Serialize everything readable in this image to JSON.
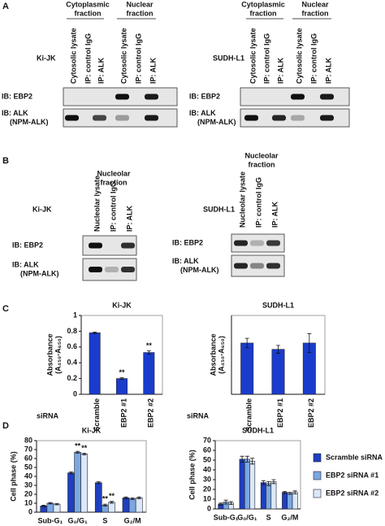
{
  "panels": [
    {
      "label": "A",
      "blocks": [
        {
          "cell_line": "Ki-JK",
          "groups": [
            [
              "Cytoplasmic",
              "fraction"
            ],
            [
              "Nuclear",
              "fraction"
            ]
          ],
          "lanes": [
            "Cytosolic lysate",
            "IP: control IgG",
            "IP: ALK",
            "Cytosolic lysate",
            "IP: control IgG",
            "IP: ALK"
          ],
          "blots": [
            [
              "IB: EBP2"
            ],
            [
              "IB: ALK",
              "(NPM-ALK)"
            ]
          ]
        },
        {
          "cell_line": "SUDH-L1",
          "groups": [
            [
              "Cytoplasmic",
              "fraction"
            ],
            [
              "Nuclear",
              "fraction"
            ]
          ],
          "lanes": [
            "Cytosolic lysate",
            "IP: control IgG",
            "IP: ALK",
            "Cytosolic lysate",
            "IP: control IgG",
            "IP: ALK"
          ],
          "blots": [
            [
              "IB: EBP2"
            ],
            [
              "IB: ALK",
              "(NPM-ALK)"
            ]
          ]
        }
      ]
    },
    {
      "label": "B",
      "blocks": [
        {
          "cell_line": "Ki-JK",
          "groups": [
            [
              "Nucleolar",
              "fraction"
            ]
          ],
          "lanes": [
            "Nucleolar lysate",
            "IP: control IgG",
            "IP: ALK"
          ],
          "blots": [
            [
              "IB: EBP2"
            ],
            [
              "IB: ALK",
              "(NPM-ALK)"
            ]
          ]
        },
        {
          "cell_line": "SUDH-L1",
          "groups": [
            [
              "Nucleolar",
              "fraction"
            ]
          ],
          "lanes": [
            "Nucleolar lysate",
            "IP: control IgG",
            "IP: ALK"
          ],
          "blots": [
            [
              "IB: EBP2"
            ],
            [
              "IB: ALK",
              "(NPM-ALK)"
            ]
          ]
        }
      ]
    },
    {
      "label": "C"
    },
    {
      "label": "D"
    }
  ],
  "chart_data": [
    {
      "type": "bar",
      "title": "Ki-JK",
      "y_label": [
        "Absorbance",
        "(A₄₅₀-A₆₅₀)"
      ],
      "x_label": "siRNA",
      "categories": [
        "Scramble",
        "EBP2 #1",
        "EBP2 #2"
      ],
      "values": [
        0.78,
        0.2,
        0.53
      ],
      "errors": [
        0.01,
        0.01,
        0.02
      ],
      "significance": [
        null,
        "**",
        "**"
      ],
      "color": "#1a3ccc",
      "ylim": [
        0,
        1
      ],
      "yticks": [
        0,
        0.2,
        0.4,
        0.6,
        0.8,
        1
      ]
    },
    {
      "type": "bar",
      "title": "SUDH-L1",
      "y_label": [
        "Absorbance",
        "(A₄₅₀-A₆₅₀)"
      ],
      "x_label": "siRNA",
      "categories": [
        "Scramble",
        "EBP2 #1",
        "EBP2 #2"
      ],
      "values": [
        0.65,
        0.57,
        0.65
      ],
      "errors": [
        0.06,
        0.05,
        0.12
      ],
      "color": "#1a3ccc",
      "ylim": [
        0,
        1
      ]
    },
    {
      "type": "bar",
      "title": "Ki-JK",
      "y_label": [
        "Cell phase (%)"
      ],
      "categories": [
        "Sub-G₁",
        "G₀/G₁",
        "S",
        "G₂/M"
      ],
      "series": [
        {
          "name": "Scramble siRNA",
          "color": "#1f3fbf",
          "values": [
            7,
            44,
            33,
            16
          ],
          "errors": [
            0.8,
            1,
            1,
            1
          ]
        },
        {
          "name": "EBP2 siRNA #1",
          "color": "#7ba7e0",
          "values": [
            10,
            67,
            8,
            15
          ],
          "errors": [
            0.8,
            1,
            1,
            1
          ],
          "significance": [
            null,
            "**",
            "**",
            null
          ]
        },
        {
          "name": "EBP2 siRNA #2",
          "color": "#dbe8f8",
          "values": [
            9,
            65,
            11,
            16
          ],
          "errors": [
            0.8,
            1,
            1,
            1
          ],
          "significance": [
            null,
            "**",
            "**",
            null
          ]
        }
      ],
      "legend": "right",
      "ylim": [
        0,
        80
      ],
      "yticks": [
        0,
        10,
        20,
        30,
        40,
        50,
        60,
        70,
        80
      ]
    },
    {
      "type": "bar",
      "title": "SUDH-L1",
      "y_label": [
        "Cell phase (%)"
      ],
      "categories": [
        "Sub-G₁",
        "G₀/G₁",
        "S",
        "G₂/M"
      ],
      "series": [
        {
          "color": "#1f3fbf",
          "values": [
            5,
            51,
            27,
            17
          ],
          "errors": [
            1,
            3,
            2,
            1
          ]
        },
        {
          "color": "#7ba7e0",
          "values": [
            7,
            51,
            26,
            16
          ],
          "errors": [
            2,
            3,
            2,
            1
          ]
        },
        {
          "color": "#dbe8f8",
          "values": [
            6,
            49,
            28,
            17
          ],
          "errors": [
            1.5,
            3,
            2,
            1.5
          ]
        }
      ],
      "ylim": [
        0,
        70
      ],
      "yticks": [
        0,
        10,
        20,
        30,
        40,
        50,
        60,
        70
      ]
    }
  ]
}
